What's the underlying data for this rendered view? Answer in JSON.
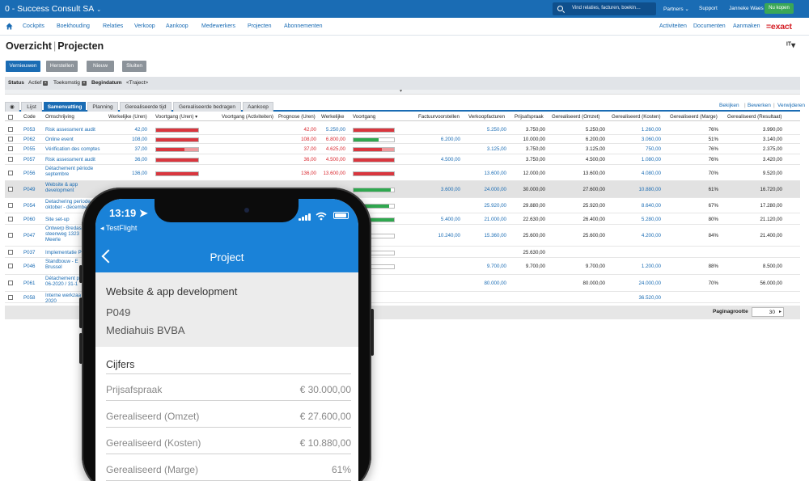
{
  "topbar": {
    "company": "0 - Success Consult SA",
    "search_placeholder": "Vind relaties, facturen, boekin…",
    "partners": "Partners",
    "support": "Support",
    "user": "Janneke Waes",
    "buy": "Nu kopen"
  },
  "menu": {
    "items": [
      "Cockpits",
      "Boekhouding",
      "Relaties",
      "Verkoop",
      "Aankoop",
      "Medewerkers",
      "Projecten",
      "Abonnementen"
    ],
    "right": [
      "Activiteiten",
      "Documenten",
      "Aanmaken"
    ],
    "logo": "=exact"
  },
  "page": {
    "title_a": "Overzicht",
    "title_b": "Projecten",
    "lang": "ᴵᵀ▾"
  },
  "buttons": {
    "refresh": "Vernieuwen",
    "reset": "Herstellen",
    "new": "Nieuw",
    "close": "Sluiten"
  },
  "filters": {
    "status_label": "Status",
    "status_v1": "Actief",
    "status_v2": "Toekomstig",
    "date_label": "Begindatum",
    "date_value": "<Traject>"
  },
  "tabs": {
    "first_icon": "eye-icon",
    "items": [
      "Lijst",
      "Samenvatting",
      "Planning",
      "Gerealiseerde tijd",
      "Gerealiseerde bedragen",
      "Aankoop"
    ],
    "active": 1,
    "right": [
      "Bekijken",
      "Bewerken",
      "Verwijderen"
    ]
  },
  "table": {
    "headers": [
      "Code",
      "Omschrijving",
      "Werkelijke (Uren)",
      "Voortgang (Uren) ▾",
      "Voortgang (Activiteiten)",
      "Prognose (Uren)",
      "Werkelijke",
      "Voortgang",
      "Factuurvoorstellen",
      "Verkoopfacturen",
      "Prijsafspraak",
      "Gerealiseerd (Omzet)",
      "Gerealiseerd (Kosten)",
      "Gerealiseerd (Marge)",
      "Gerealiseerd (Resultaat)"
    ],
    "rows": [
      {
        "code": "P053",
        "desc": [
          "Risk assessment audit"
        ],
        "uren": "42,00",
        "prog": "42,00",
        "progred": true,
        "werk": "5.250,00",
        "werkred": false,
        "fv": "",
        "vf": "5.250,00",
        "pa": "3.750,00",
        "omzet": "5.250,00",
        "kosten": "1.260,00",
        "marge": "76%",
        "res": "3.990,00",
        "b1": [
          1,
          "#d9363e"
        ],
        "b2": [
          1,
          "#d9363e"
        ]
      },
      {
        "code": "P062",
        "desc": [
          "Online event"
        ],
        "uren": "108,00",
        "prog": "108,00",
        "progred": true,
        "werk": "6.800,00",
        "werkred": true,
        "fv": "6.200,00",
        "vf": "",
        "pa": "10.000,00",
        "omzet": "6.200,00",
        "kosten": "3.060,00",
        "marge": "51%",
        "res": "3.140,00",
        "b1": [
          1,
          "#d9363e"
        ],
        "b2": [
          0.62,
          "#2fa84f"
        ]
      },
      {
        "code": "P055",
        "desc": [
          "Vérification des comptes"
        ],
        "uren": "37,00",
        "prog": "37,00",
        "progred": true,
        "werk": "4.625,00",
        "werkred": true,
        "fv": "",
        "vf": "3.125,00",
        "pa": "3.750,00",
        "omzet": "3.125,00",
        "kosten": "750,00",
        "marge": "76%",
        "res": "2.375,00",
        "b1": [
          1,
          "#d9363e"
        ],
        "b2": [
          1,
          "#d9363e"
        ],
        "b1b": 0.68,
        "b2b": 0.7
      },
      {
        "code": "P057",
        "desc": [
          "Risk assessment audit"
        ],
        "uren": "36,00",
        "prog": "36,00",
        "progred": true,
        "werk": "4.500,00",
        "werkred": true,
        "fv": "4.500,00",
        "vf": "",
        "pa": "3.750,00",
        "omzet": "4.500,00",
        "kosten": "1.080,00",
        "marge": "76%",
        "res": "3.420,00",
        "b1": [
          1,
          "#d9363e"
        ],
        "b2": [
          1,
          "#d9363e"
        ]
      },
      {
        "code": "P056",
        "desc": [
          "Détachement période",
          "septembre"
        ],
        "uren": "136,00",
        "prog": "136,00",
        "progred": true,
        "werk": "13.600,00",
        "werkred": true,
        "fv": "",
        "vf": "13.600,00",
        "pa": "12.000,00",
        "omzet": "13.600,00",
        "kosten": "4.080,00",
        "marge": "70%",
        "res": "9.520,00",
        "b1": [
          1,
          "#d9363e"
        ],
        "b2": [
          1,
          "#d9363e"
        ]
      },
      {
        "code": "P049",
        "desc": [
          "Website & app",
          "development"
        ],
        "uren": "",
        "prog": "",
        "progred": false,
        "werk": "",
        "werkred": false,
        "fv": "3.600,00",
        "vf": "24.000,00",
        "pa": "30.000,00",
        "omzet": "27.600,00",
        "kosten": "10.880,00",
        "marge": "61%",
        "res": "16.720,00",
        "b1": [
          0,
          ""
        ],
        "b2": [
          0.92,
          "#2fa84f"
        ],
        "hl": true
      },
      {
        "code": "P054",
        "desc": [
          "Detachering periode",
          "oktober - december"
        ],
        "uren": "",
        "prog": "",
        "progred": false,
        "werk": "",
        "werkred": false,
        "fv": "",
        "vf": "25.920,00",
        "pa": "29.880,00",
        "omzet": "25.920,00",
        "kosten": "8.640,00",
        "marge": "67%",
        "res": "17.280,00",
        "b1": [
          0,
          ""
        ],
        "b2": [
          0.87,
          "#2fa84f"
        ]
      },
      {
        "code": "P060",
        "desc": [
          "Site set-up"
        ],
        "uren": "",
        "prog": "",
        "progred": false,
        "werk": "",
        "werkred": false,
        "fv": "5.400,00",
        "vf": "21.000,00",
        "pa": "22.630,00",
        "omzet": "26.400,00",
        "kosten": "5.280,00",
        "marge": "80%",
        "res": "21.120,00",
        "b1": [
          0,
          ""
        ],
        "b2": [
          1,
          "#2fa84f"
        ]
      },
      {
        "code": "P047",
        "desc": [
          "Ontwerp Bredase",
          "steenweg 1323",
          "Meerle"
        ],
        "uren": "",
        "prog": "",
        "progred": false,
        "werk": "",
        "werkred": false,
        "fv": "10.240,00",
        "vf": "15.360,00",
        "pa": "25.600,00",
        "omzet": "25.600,00",
        "kosten": "4.200,00",
        "marge": "84%",
        "res": "21.400,00",
        "b1": [
          0,
          ""
        ],
        "b2": [
          0.3,
          "#2fa84f"
        ]
      },
      {
        "code": "P037",
        "desc": [
          "Implementatie P"
        ],
        "uren": "",
        "prog": "",
        "progred": false,
        "werk": "",
        "werkred": false,
        "fv": "",
        "vf": "",
        "pa": "25.630,00",
        "omzet": "",
        "kosten": "",
        "marge": "",
        "res": "",
        "b1": [
          0,
          ""
        ],
        "b2": [
          0,
          "#fff"
        ]
      },
      {
        "code": "P046",
        "desc": [
          "Standbouw - E",
          "Brussel"
        ],
        "uren": "",
        "prog": "",
        "progred": false,
        "werk": "",
        "werkred": false,
        "fv": "",
        "vf": "9.700,00",
        "pa": "9.700,00",
        "omzet": "9.700,00",
        "kosten": "1.200,00",
        "marge": "88%",
        "res": "8.500,00",
        "b1": [
          0,
          ""
        ],
        "b2": [
          0,
          "#fff"
        ]
      },
      {
        "code": "P061",
        "desc": [
          "Détachement p",
          "06-2020 / 31-1"
        ],
        "uren": "",
        "prog": "",
        "progred": false,
        "werk": "",
        "werkred": false,
        "fv": "",
        "vf": "80.000,00",
        "pa": "",
        "omzet": "80.000,00",
        "kosten": "24.000,00",
        "marge": "70%",
        "res": "56.000,00",
        "b1": [
          0,
          ""
        ],
        "b2": [
          0,
          ""
        ]
      },
      {
        "code": "P058",
        "desc": [
          "Interne werkzaa",
          "2020"
        ],
        "uren": "",
        "prog": "",
        "progred": false,
        "werk": "",
        "werkred": false,
        "fv": "",
        "vf": "",
        "pa": "",
        "omzet": "",
        "kosten": "36.520,00",
        "marge": "",
        "res": "",
        "b1": [
          0,
          ""
        ],
        "b2": [
          0,
          ""
        ]
      }
    ]
  },
  "pager": {
    "label": "Paginagrootte",
    "value": "30"
  },
  "phone": {
    "time": "13:19 ➤",
    "testflight": "◂ TestFlight",
    "nav_title": "Project",
    "project_name": "Website & app development",
    "project_code": "P049",
    "customer": "Mediahuis BVBA",
    "section": "Cijfers",
    "figures": [
      {
        "label": "Prijsafspraak",
        "value": "€ 30.000,00"
      },
      {
        "label": "Gerealiseerd (Omzet)",
        "value": "€ 27.600,00"
      },
      {
        "label": "Gerealiseerd (Kosten)",
        "value": "€ 10.880,00"
      },
      {
        "label": "Gerealiseerd (Marge)",
        "value": "61%"
      }
    ]
  },
  "colors": {
    "brand_blue": "#1a6cb4",
    "ios_blue": "#1a82d8",
    "progress_red": "#d9363e",
    "progress_green": "#2fa84f",
    "exact_red": "#d41f26",
    "buy_green": "#3aa757"
  }
}
